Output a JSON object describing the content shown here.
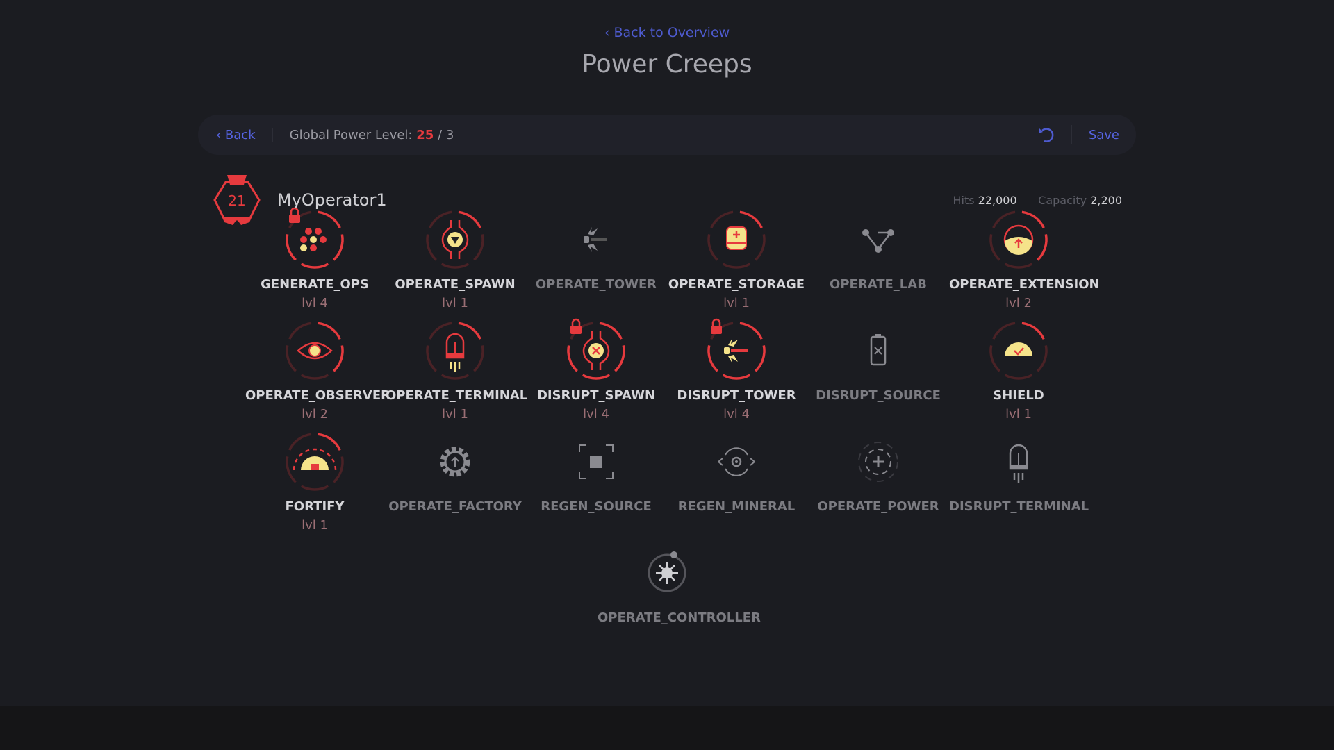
{
  "nav": {
    "back_to_overview": "Back to Overview",
    "title": "Power Creeps"
  },
  "toolbar": {
    "back": "Back",
    "gpl_label": "Global Power Level:",
    "gpl_current": "25",
    "gpl_sep": "/",
    "gpl_max": "3",
    "save": "Save",
    "undo_icon": "undo-icon"
  },
  "operator": {
    "level": "21",
    "name": "MyOperator1",
    "hits_label": "Hits",
    "hits": "22,000",
    "capacity_label": "Capacity",
    "capacity": "2,200"
  },
  "colors": {
    "accent": "#5563e0",
    "red": "#e63a3e",
    "yellow": "#f5e38a",
    "dim_red": "#4a2226"
  },
  "skills": [
    {
      "name": "GENERATE_OPS",
      "level": "lvl 4",
      "lvl": 4,
      "locked": true,
      "icon": "dots"
    },
    {
      "name": "OPERATE_SPAWN",
      "level": "lvl 1",
      "lvl": 1,
      "locked": false,
      "icon": "spawn"
    },
    {
      "name": "OPERATE_TOWER",
      "level": null,
      "lvl": 0,
      "locked": false,
      "icon": "tower"
    },
    {
      "name": "OPERATE_STORAGE",
      "level": "lvl 1",
      "lvl": 1,
      "locked": false,
      "icon": "storage"
    },
    {
      "name": "OPERATE_LAB",
      "level": null,
      "lvl": 0,
      "locked": false,
      "icon": "lab"
    },
    {
      "name": "OPERATE_EXTENSION",
      "level": "lvl 2",
      "lvl": 2,
      "locked": false,
      "icon": "extension"
    },
    {
      "name": "OPERATE_OBSERVER",
      "level": "lvl 2",
      "lvl": 2,
      "locked": false,
      "icon": "eye"
    },
    {
      "name": "OPERATE_TERMINAL",
      "level": "lvl 1",
      "lvl": 1,
      "locked": false,
      "icon": "terminal"
    },
    {
      "name": "DISRUPT_SPAWN",
      "level": "lvl 4",
      "lvl": 4,
      "locked": true,
      "icon": "xspawn"
    },
    {
      "name": "DISRUPT_TOWER",
      "level": "lvl 4",
      "lvl": 4,
      "locked": true,
      "icon": "tower"
    },
    {
      "name": "DISRUPT_SOURCE",
      "level": null,
      "lvl": 0,
      "locked": false,
      "icon": "battery"
    },
    {
      "name": "SHIELD",
      "level": "lvl 1",
      "lvl": 1,
      "locked": false,
      "icon": "shield"
    },
    {
      "name": "FORTIFY",
      "level": "lvl 1",
      "lvl": 1,
      "locked": false,
      "icon": "fortify"
    },
    {
      "name": "OPERATE_FACTORY",
      "level": null,
      "lvl": 0,
      "locked": false,
      "icon": "gear"
    },
    {
      "name": "REGEN_SOURCE",
      "level": null,
      "lvl": 0,
      "locked": false,
      "icon": "square"
    },
    {
      "name": "REGEN_MINERAL",
      "level": null,
      "lvl": 0,
      "locked": false,
      "icon": "target"
    },
    {
      "name": "OPERATE_POWER",
      "level": null,
      "lvl": 0,
      "locked": false,
      "icon": "plus"
    },
    {
      "name": "DISRUPT_TERMINAL",
      "level": null,
      "lvl": 0,
      "locked": false,
      "icon": "terminal"
    },
    {
      "name": "OPERATE_CONTROLLER",
      "level": null,
      "lvl": 0,
      "locked": false,
      "icon": "controller"
    }
  ]
}
